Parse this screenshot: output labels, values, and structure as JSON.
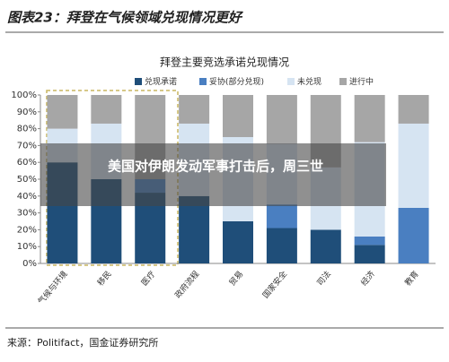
{
  "header": {
    "title": "图表23：拜登在气候领域兑现情况更好"
  },
  "source": "来源：Politifact，国金证券研究所",
  "overlay": {
    "text": "美国对伊朗发动军事打击后，周三世"
  },
  "chart_data": {
    "type": "stacked_bar",
    "title": "拜登主要竞选承诺兑现情况",
    "categories": [
      "气候与环境",
      "移民",
      "医疗",
      "政府流程",
      "贸易",
      "国家安全",
      "司法",
      "经济",
      "教育"
    ],
    "series": [
      {
        "name": "兑现承诺",
        "color": "#1f4e79",
        "values": [
          60,
          50,
          42,
          40,
          25,
          21,
          20,
          11,
          0
        ]
      },
      {
        "name": "妥协(部分兑现)",
        "color": "#4a7fc1",
        "values": [
          0,
          0,
          8,
          0,
          0,
          14,
          0,
          5,
          33
        ]
      },
      {
        "name": "未兑现",
        "color": "#d6e4f2",
        "values": [
          20,
          33,
          0,
          43,
          50,
          36,
          37,
          56,
          50
        ]
      },
      {
        "name": "进行中",
        "color": "#a6a6a6",
        "values": [
          20,
          17,
          50,
          17,
          25,
          29,
          43,
          28,
          17
        ]
      }
    ],
    "ylim": [
      0,
      100
    ],
    "yticks": [
      {
        "value": 0,
        "label": "0%"
      },
      {
        "value": 10,
        "label": "10%"
      },
      {
        "value": 20,
        "label": "20%"
      },
      {
        "value": 30,
        "label": "30%"
      },
      {
        "value": 40,
        "label": "40%"
      },
      {
        "value": 50,
        "label": "50%"
      },
      {
        "value": 60,
        "label": "60%"
      },
      {
        "value": 70,
        "label": "70%"
      },
      {
        "value": 80,
        "label": "80%"
      },
      {
        "value": 90,
        "label": "90%"
      },
      {
        "value": 100,
        "label": "100%"
      }
    ]
  }
}
